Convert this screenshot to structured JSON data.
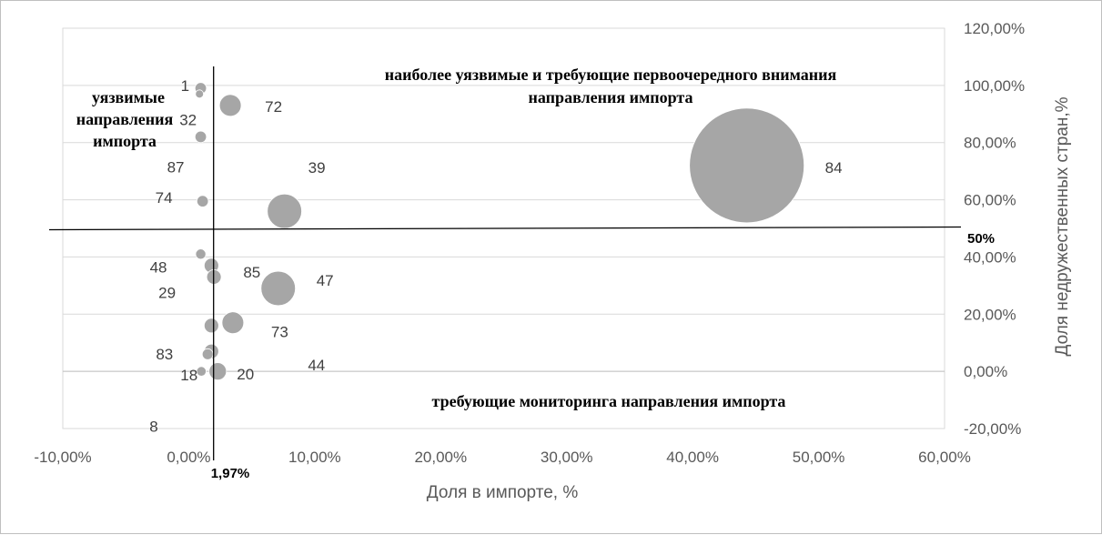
{
  "chart_data": {
    "type": "scatter",
    "subtype": "bubble",
    "xlabel": "Доля в импорте, %",
    "ylabel": "Доля недружественных стран,%",
    "xlim": [
      -0.1,
      0.6
    ],
    "ylim": [
      -0.2,
      1.2
    ],
    "x_ticks": [
      "-10,00%",
      "0,00%",
      "10,00%",
      "20,00%",
      "30,00%",
      "40,00%",
      "50,00%",
      "60,00%"
    ],
    "y_ticks": [
      "-20,00%",
      "0,00%",
      "20,00%",
      "40,00%",
      "60,00%",
      "80,00%",
      "100,00%",
      "120,00%"
    ],
    "grid": "horizontal",
    "bubble_color": "#a6a6a6",
    "points": [
      {
        "label": "1",
        "x": 0.0095,
        "y": 0.99,
        "size": 1.0
      },
      {
        "label": "32",
        "x": 0.0085,
        "y": 0.97,
        "size": 0.5
      },
      {
        "label": "72",
        "x": 0.033,
        "y": 0.93,
        "size": 3.6
      },
      {
        "label": "87",
        "x": 0.0095,
        "y": 0.82,
        "size": 1.0
      },
      {
        "label": "84",
        "x": 0.443,
        "y": 0.72,
        "size": 100
      },
      {
        "label": "74",
        "x": 0.011,
        "y": 0.595,
        "size": 1.0
      },
      {
        "label": "39",
        "x": 0.076,
        "y": 0.56,
        "size": 9.0
      },
      {
        "label": "48",
        "x": 0.0095,
        "y": 0.41,
        "size": 0.8
      },
      {
        "label": "85",
        "x": 0.018,
        "y": 0.37,
        "size": 1.6
      },
      {
        "label": "29",
        "x": 0.02,
        "y": 0.33,
        "size": 1.6
      },
      {
        "label": "47",
        "x": 0.071,
        "y": 0.29,
        "size": 9.0
      },
      {
        "label": "73",
        "x": 0.035,
        "y": 0.17,
        "size": 3.6
      },
      {
        "label": "44",
        "x": 0.018,
        "y": 0.16,
        "size": 1.6
      },
      {
        "label": "83",
        "x": 0.018,
        "y": 0.07,
        "size": 1.6
      },
      {
        "label": "8",
        "x": 0.015,
        "y": 0.06,
        "size": 0.9
      },
      {
        "label": "20",
        "x": 0.023,
        "y": 0.0,
        "size": 2.3
      },
      {
        "label": "18",
        "x": 0.01,
        "y": 0.0,
        "size": 0.7
      }
    ],
    "thresholds": {
      "x": {
        "value": 0.0197,
        "label": "1,97%"
      },
      "y": {
        "value": 0.5,
        "label": "50%"
      }
    },
    "annotations": [
      {
        "lines": [
          "наиболее уязвимые и требующие первоочередного внимания",
          "направления импорта"
        ]
      },
      {
        "lines": [
          "уязвимые",
          "направления",
          "импорта"
        ]
      },
      {
        "lines": [
          "требующие мониторинга направления импорта"
        ]
      }
    ]
  }
}
